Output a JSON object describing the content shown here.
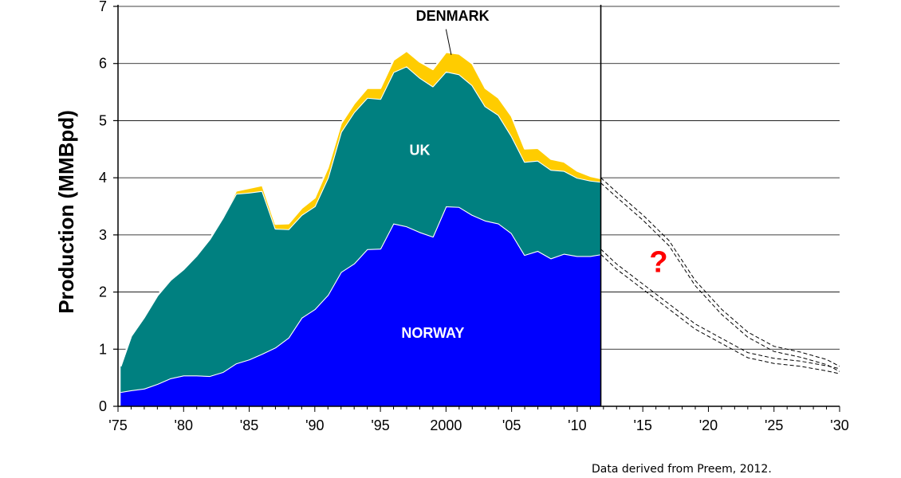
{
  "chart_data": {
    "type": "area",
    "stacked": true,
    "ylabel": "Production (MMBpd)",
    "xlabel": "",
    "xlim": [
      1975,
      2030
    ],
    "ylim": [
      0,
      7
    ],
    "yticks": [
      "0",
      "1",
      "2",
      "3",
      "4",
      "5",
      "6",
      "7"
    ],
    "xticks": [
      {
        "x": 1975,
        "label": "'75"
      },
      {
        "x": 1980,
        "label": "'80"
      },
      {
        "x": 1985,
        "label": "'85"
      },
      {
        "x": 1990,
        "label": "'90"
      },
      {
        "x": 1995,
        "label": "'95"
      },
      {
        "x": 2000,
        "label": "2000"
      },
      {
        "x": 2005,
        "label": "'05"
      },
      {
        "x": 2010,
        "label": "'10"
      },
      {
        "x": 2015,
        "label": "'15"
      },
      {
        "x": 2020,
        "label": "'20"
      },
      {
        "x": 2025,
        "label": "'25"
      },
      {
        "x": 2030,
        "label": "'30"
      }
    ],
    "grid": "horizontal",
    "divider_x": 2011.8,
    "x": [
      1975.2,
      1976,
      1977,
      1978,
      1979,
      1980,
      1981,
      1982,
      1983,
      1984,
      1985,
      1986,
      1987,
      1988,
      1989,
      1990,
      1991,
      1992,
      1993,
      1994,
      1995,
      1996,
      1997,
      1998,
      1999,
      2000,
      2001,
      2002,
      2003,
      2004,
      2005,
      2006,
      2007,
      2008,
      2009,
      2010,
      2011,
      2011.8
    ],
    "series": [
      {
        "name": "NORWAY",
        "color": "#0000ff",
        "values": [
          0.25,
          0.28,
          0.31,
          0.39,
          0.49,
          0.54,
          0.54,
          0.53,
          0.6,
          0.75,
          0.82,
          0.92,
          1.03,
          1.2,
          1.55,
          1.7,
          1.95,
          2.35,
          2.5,
          2.75,
          2.76,
          3.2,
          3.15,
          3.05,
          2.97,
          3.5,
          3.49,
          3.35,
          3.25,
          3.2,
          3.03,
          2.65,
          2.72,
          2.59,
          2.67,
          2.63,
          2.63,
          2.66
        ]
      },
      {
        "name": "UK",
        "color": "#008080",
        "values": [
          0.45,
          0.95,
          1.25,
          1.55,
          1.72,
          1.86,
          2.1,
          2.4,
          2.7,
          2.97,
          2.92,
          2.85,
          2.08,
          1.9,
          1.8,
          1.8,
          2.05,
          2.45,
          2.65,
          2.65,
          2.62,
          2.65,
          2.8,
          2.7,
          2.63,
          2.36,
          2.32,
          2.27,
          2.0,
          1.9,
          1.7,
          1.63,
          1.58,
          1.55,
          1.45,
          1.37,
          1.32,
          1.27
        ]
      },
      {
        "name": "DENMARK",
        "color": "#ffcc00",
        "values": [
          0,
          0,
          0,
          0,
          0,
          0,
          0,
          0,
          0,
          0.05,
          0.08,
          0.1,
          0.08,
          0.1,
          0.12,
          0.15,
          0.18,
          0.15,
          0.15,
          0.17,
          0.19,
          0.21,
          0.27,
          0.28,
          0.3,
          0.34,
          0.36,
          0.38,
          0.32,
          0.3,
          0.35,
          0.23,
          0.22,
          0.19,
          0.16,
          0.12,
          0.08,
          0.06
        ]
      }
    ],
    "region_labels": [
      {
        "text": "NORWAY",
        "x": 1999,
        "y": 1.2,
        "color": "#ffffff"
      },
      {
        "text": "UK",
        "x": 1998,
        "y": 4.4,
        "color": "#ffffff"
      },
      {
        "text": "DENMARK",
        "x": 2000.5,
        "y": 6.75,
        "color": "#000000"
      }
    ],
    "forecast": {
      "upper": {
        "x": [
          2011.8,
          2013,
          2015,
          2017,
          2019,
          2021,
          2023,
          2025,
          2027,
          2029,
          2030
        ],
        "y": [
          4.0,
          3.75,
          3.35,
          2.9,
          2.2,
          1.7,
          1.3,
          1.05,
          0.95,
          0.82,
          0.7
        ]
      },
      "lower": {
        "x": [
          2011.8,
          2013,
          2015,
          2017,
          2019,
          2021,
          2023,
          2025,
          2027,
          2029,
          2030
        ],
        "y": [
          2.66,
          2.4,
          2.05,
          1.7,
          1.35,
          1.1,
          0.85,
          0.75,
          0.7,
          0.62,
          0.57
        ]
      },
      "annotation": "?",
      "annotation_x": 2016.2,
      "annotation_y": 2.35,
      "annotation_color": "#ff0000"
    },
    "source_note": "Data derived from Preem, 2012."
  }
}
